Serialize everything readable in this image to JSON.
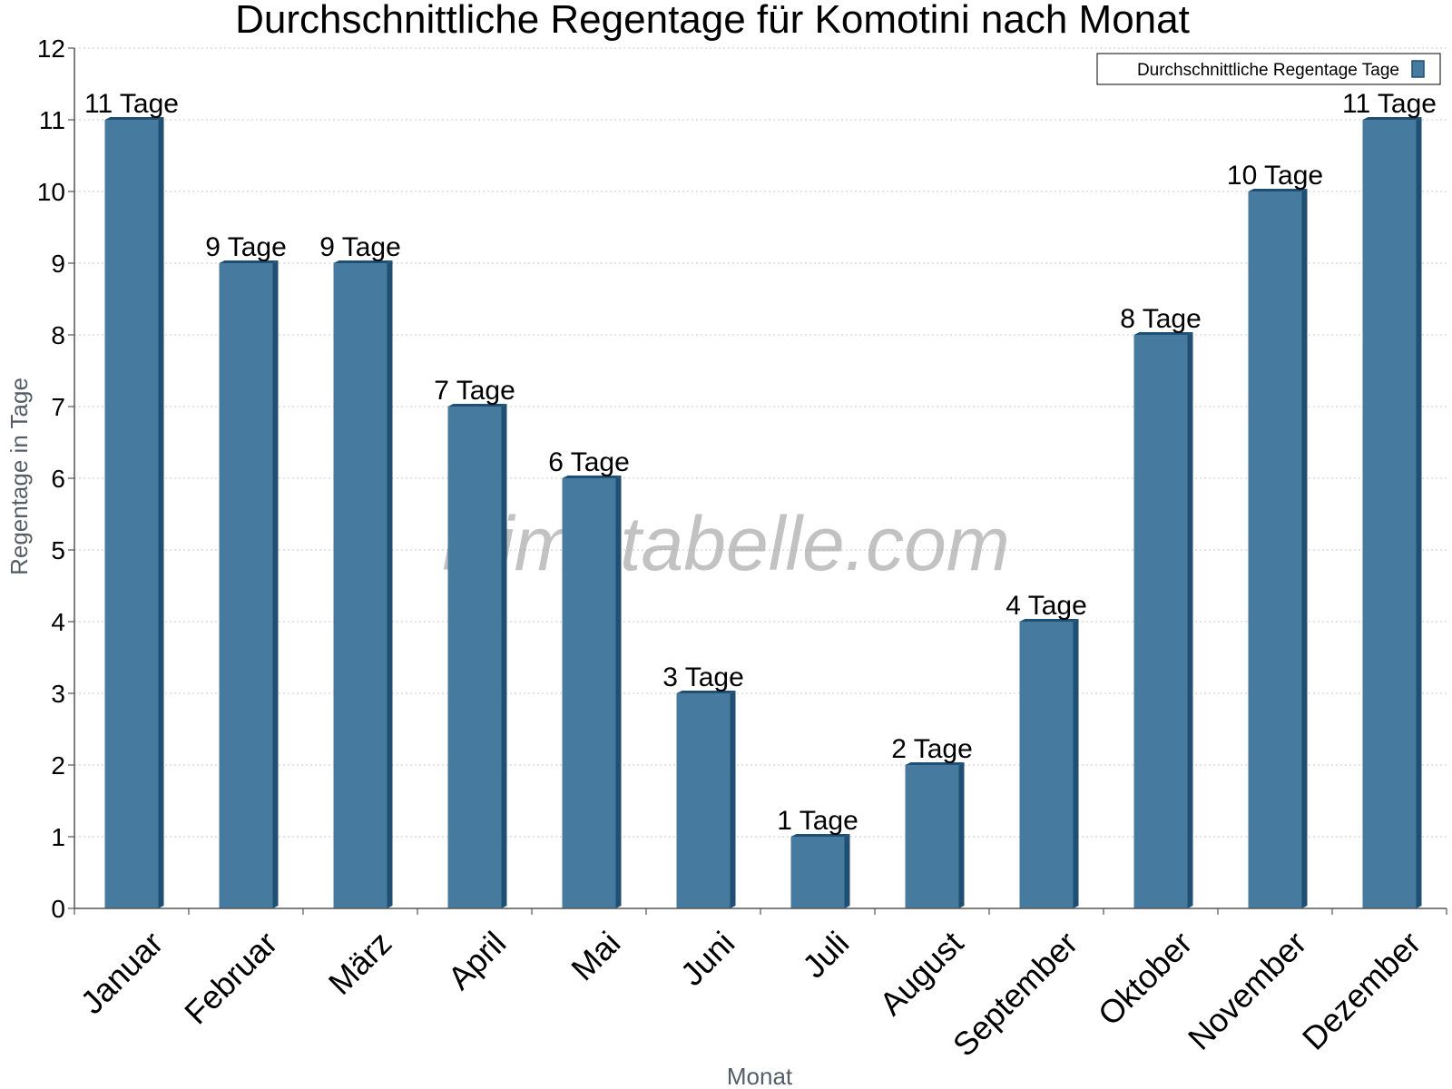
{
  "chart_data": {
    "type": "bar",
    "title": "Durchschnittliche Regentage für Komotini nach Monat",
    "xlabel": "Monat",
    "ylabel": "Regentage in Tage",
    "ylim": [
      0,
      12
    ],
    "yticks": [
      "0",
      "1",
      "2",
      "3",
      "4",
      "5",
      "6",
      "7",
      "8",
      "9",
      "10",
      "11",
      "12"
    ],
    "grid": true,
    "legend_position": "top-right",
    "categories": [
      "Januar",
      "Februar",
      "März",
      "April",
      "Mai",
      "Juni",
      "Juli",
      "August",
      "September",
      "Oktober",
      "November",
      "Dezember"
    ],
    "series": [
      {
        "name": "Durchschnittliche Regentage Tage",
        "values": [
          11,
          9,
          9,
          7,
          6,
          3,
          1,
          2,
          4,
          8,
          10,
          11
        ],
        "labels": [
          "11 Tage",
          "9 Tage",
          "9 Tage",
          "7 Tage",
          "6 Tage",
          "3 Tage",
          "1 Tage",
          "2 Tage",
          "4 Tage",
          "8 Tage",
          "10 Tage",
          "11 Tage"
        ]
      }
    ],
    "colors": {
      "bar": "#467a9e",
      "bar_side": "#1f4f72",
      "grid": "#c8c8c8",
      "axis": "#555555"
    },
    "watermark": "klimatabelle.com"
  }
}
